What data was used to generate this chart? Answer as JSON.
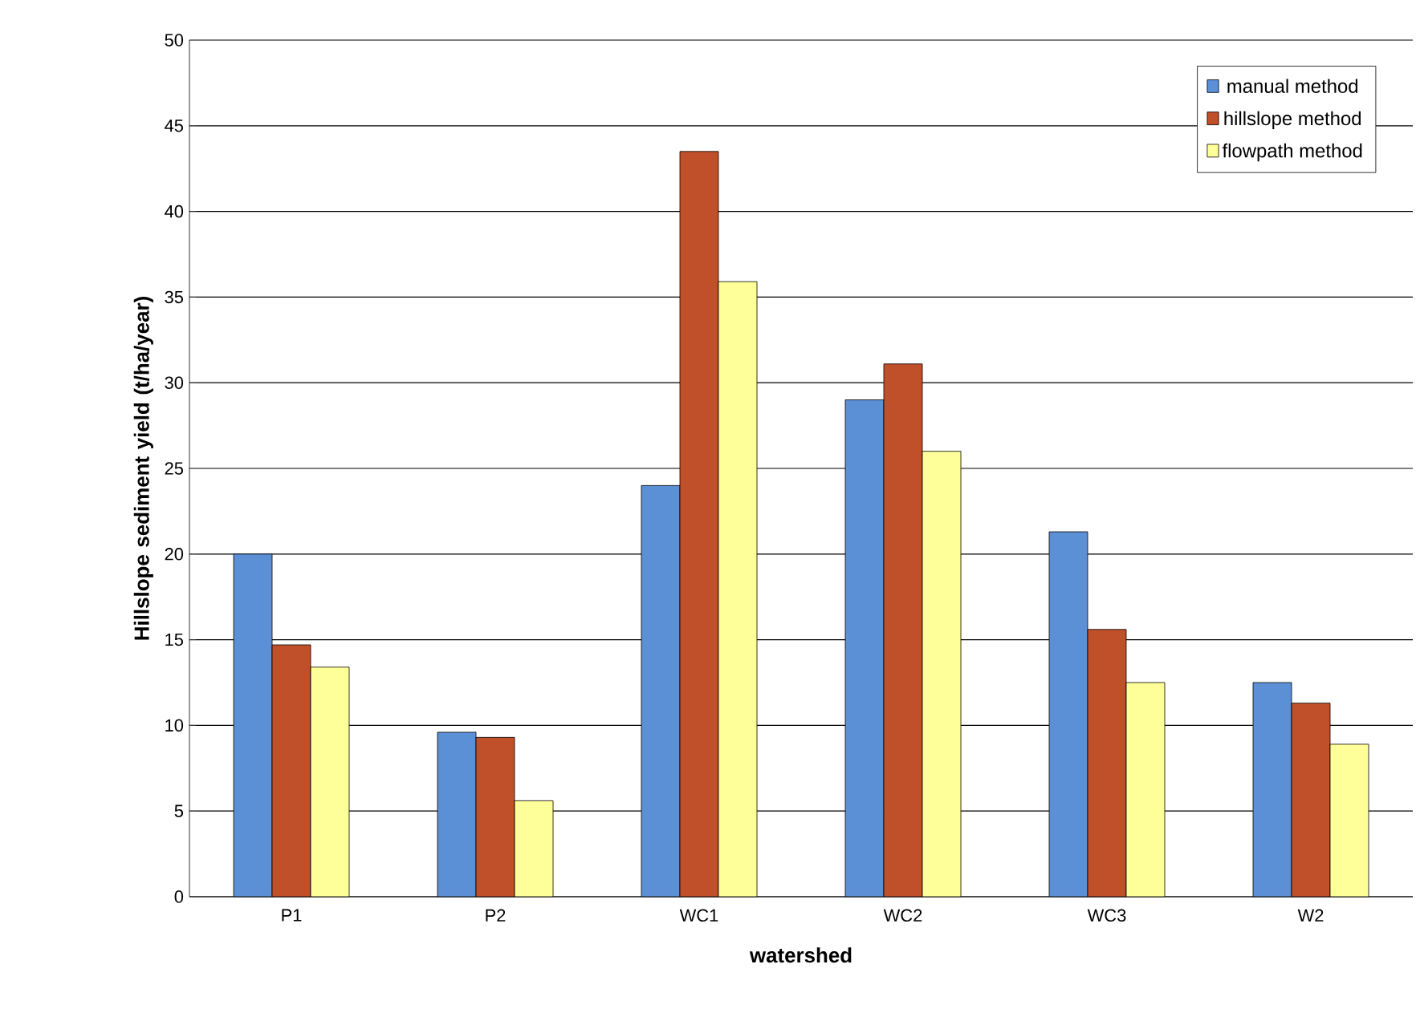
{
  "chart_data": {
    "type": "bar",
    "xlabel": "watershed",
    "ylabel": "Hillslope sediment yield (t/ha/year)",
    "categories": [
      "P1",
      "P2",
      "WC1",
      "WC2",
      "WC3",
      "W2"
    ],
    "series": [
      {
        "name": "manual method",
        "color": "#5b8fd6",
        "values": [
          20.0,
          9.6,
          24.0,
          29.0,
          21.3,
          12.5
        ]
      },
      {
        "name": "hillslope method",
        "color": "#c0502a",
        "values": [
          14.7,
          9.3,
          43.5,
          31.1,
          15.6,
          11.3
        ]
      },
      {
        "name": "flowpath method",
        "color": "#ffff99",
        "values": [
          13.4,
          5.6,
          35.9,
          26.0,
          12.5,
          8.9
        ]
      }
    ],
    "ylim": [
      0,
      50
    ],
    "yticks": [
      0,
      5,
      10,
      15,
      20,
      25,
      30,
      35,
      40,
      45,
      50
    ],
    "grid": "y",
    "legend": "top right"
  }
}
